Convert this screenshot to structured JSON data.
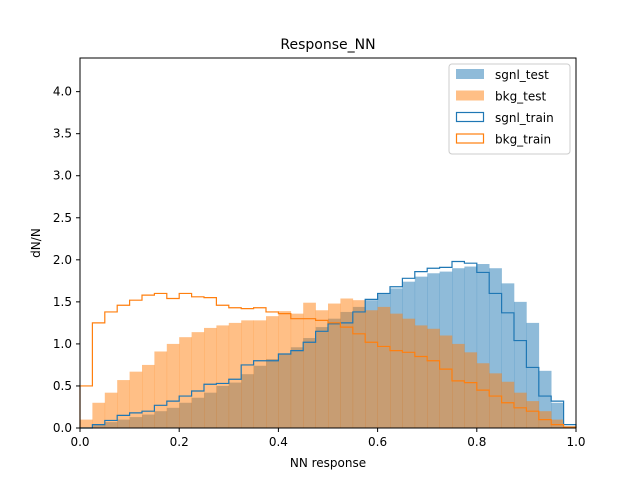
{
  "chart_data": {
    "type": "histogram",
    "title": "Response_NN",
    "xlabel": "NN response",
    "ylabel": "dN/N",
    "xlim": [
      0.0,
      1.0
    ],
    "ylim": [
      0.0,
      4.4
    ],
    "xticks": [
      "0.0",
      "0.2",
      "0.4",
      "0.6",
      "0.8",
      "1.0"
    ],
    "xtick_values": [
      0.0,
      0.2,
      0.4,
      0.6,
      0.8,
      1.0
    ],
    "yticks": [
      "0.0",
      "0.5",
      "1.0",
      "1.5",
      "2.0",
      "2.5",
      "3.0",
      "3.5",
      "4.0"
    ],
    "ytick_values": [
      0.0,
      0.5,
      1.0,
      1.5,
      2.0,
      2.5,
      3.0,
      3.5,
      4.0
    ],
    "grid": false,
    "legend_position": "top-right",
    "bins": {
      "start": 0.0,
      "end": 1.0,
      "count": 40
    },
    "series": [
      {
        "name": "sgnl_test",
        "style": "filled",
        "color": "#1f77b4",
        "values": [
          0.0,
          0.04,
          0.07,
          0.1,
          0.13,
          0.16,
          0.2,
          0.24,
          0.3,
          0.36,
          0.42,
          0.5,
          0.54,
          0.64,
          0.74,
          0.82,
          0.88,
          0.96,
          1.07,
          1.2,
          1.3,
          1.38,
          1.44,
          1.52,
          1.6,
          1.66,
          1.74,
          1.8,
          1.84,
          1.86,
          1.9,
          1.92,
          1.95,
          1.9,
          1.72,
          1.5,
          1.25,
          0.68,
          0.3,
          0.02
        ]
      },
      {
        "name": "bkg_test",
        "style": "filled",
        "color": "#ff7f0e",
        "values": [
          0.1,
          0.3,
          0.42,
          0.57,
          0.67,
          0.75,
          0.91,
          1.0,
          1.08,
          1.14,
          1.19,
          1.22,
          1.25,
          1.28,
          1.28,
          1.33,
          1.39,
          1.36,
          1.49,
          1.4,
          1.48,
          1.54,
          1.52,
          1.4,
          1.44,
          1.36,
          1.3,
          1.22,
          1.18,
          1.1,
          1.0,
          0.9,
          0.77,
          0.65,
          0.55,
          0.42,
          0.32,
          0.2,
          0.1,
          0.02
        ]
      },
      {
        "name": "sgnl_train",
        "style": "step",
        "color": "#1f77b4",
        "values": [
          0.0,
          0.04,
          0.09,
          0.15,
          0.18,
          0.2,
          0.27,
          0.32,
          0.38,
          0.44,
          0.52,
          0.53,
          0.58,
          0.75,
          0.8,
          0.8,
          0.88,
          0.92,
          1.02,
          1.15,
          1.24,
          1.25,
          1.38,
          1.53,
          1.6,
          1.68,
          1.78,
          1.86,
          1.9,
          1.91,
          1.98,
          1.96,
          1.85,
          1.6,
          1.37,
          1.04,
          0.72,
          0.38,
          0.32,
          0.04
        ]
      },
      {
        "name": "bkg_train",
        "style": "step",
        "color": "#ff7f0e",
        "values": [
          0.5,
          1.25,
          1.38,
          1.46,
          1.52,
          1.58,
          1.6,
          1.54,
          1.6,
          1.56,
          1.55,
          1.46,
          1.43,
          1.42,
          1.43,
          1.38,
          1.36,
          1.3,
          1.3,
          1.28,
          1.25,
          1.2,
          1.12,
          1.02,
          0.97,
          0.92,
          0.9,
          0.85,
          0.8,
          0.7,
          0.56,
          0.54,
          0.45,
          0.38,
          0.3,
          0.24,
          0.2,
          0.1,
          0.04,
          0.01
        ]
      }
    ]
  }
}
